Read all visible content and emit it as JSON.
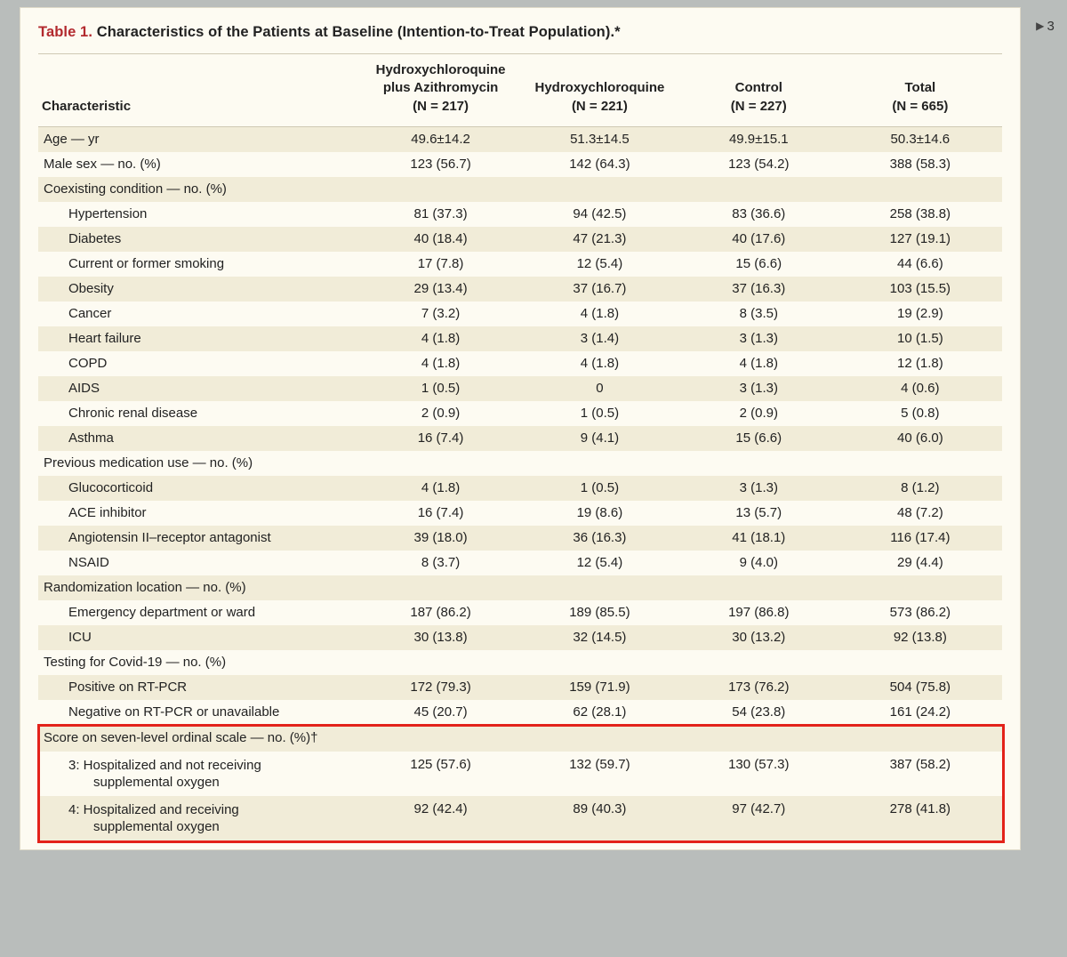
{
  "sideMarker": "3",
  "title": {
    "number": "Table 1.",
    "text": "Characteristics of the Patients at Baseline (Intention-to-Treat Population).*"
  },
  "columns": {
    "c0": "Characteristic",
    "c1a": "Hydroxychloroquine",
    "c1b": "plus Azithromycin",
    "c1c": "(N = 217)",
    "c2a": "Hydroxychloroquine",
    "c2b": "(N = 221)",
    "c3a": "Control",
    "c3b": "(N = 227)",
    "c4a": "Total",
    "c4b": "(N = 665)"
  },
  "rows": [
    {
      "shade": true,
      "indent": 0,
      "lbl": "Age — yr",
      "v": [
        "49.6±14.2",
        "51.3±14.5",
        "49.9±15.1",
        "50.3±14.6"
      ]
    },
    {
      "shade": false,
      "indent": 0,
      "lbl": "Male sex — no. (%)",
      "v": [
        "123 (56.7)",
        "142 (64.3)",
        "123 (54.2)",
        "388 (58.3)"
      ]
    },
    {
      "shade": true,
      "indent": 0,
      "lbl": "Coexisting condition — no. (%)",
      "v": [
        "",
        "",
        "",
        ""
      ]
    },
    {
      "shade": false,
      "indent": 1,
      "lbl": "Hypertension",
      "v": [
        "81 (37.3)",
        "94 (42.5)",
        "83 (36.6)",
        "258 (38.8)"
      ]
    },
    {
      "shade": true,
      "indent": 1,
      "lbl": "Diabetes",
      "v": [
        "40 (18.4)",
        "47 (21.3)",
        "40 (17.6)",
        "127 (19.1)"
      ]
    },
    {
      "shade": false,
      "indent": 1,
      "lbl": "Current or former smoking",
      "v": [
        "17 (7.8)",
        "12 (5.4)",
        "15 (6.6)",
        "44 (6.6)"
      ]
    },
    {
      "shade": true,
      "indent": 1,
      "lbl": "Obesity",
      "v": [
        "29 (13.4)",
        "37 (16.7)",
        "37 (16.3)",
        "103 (15.5)"
      ]
    },
    {
      "shade": false,
      "indent": 1,
      "lbl": "Cancer",
      "v": [
        "7 (3.2)",
        "4 (1.8)",
        "8 (3.5)",
        "19 (2.9)"
      ]
    },
    {
      "shade": true,
      "indent": 1,
      "lbl": "Heart failure",
      "v": [
        "4 (1.8)",
        "3 (1.4)",
        "3 (1.3)",
        "10 (1.5)"
      ]
    },
    {
      "shade": false,
      "indent": 1,
      "lbl": "COPD",
      "v": [
        "4 (1.8)",
        "4 (1.8)",
        "4 (1.8)",
        "12 (1.8)"
      ]
    },
    {
      "shade": true,
      "indent": 1,
      "lbl": "AIDS",
      "v": [
        "1 (0.5)",
        "0",
        "3 (1.3)",
        "4 (0.6)"
      ]
    },
    {
      "shade": false,
      "indent": 1,
      "lbl": "Chronic renal disease",
      "v": [
        "2 (0.9)",
        "1 (0.5)",
        "2 (0.9)",
        "5 (0.8)"
      ]
    },
    {
      "shade": true,
      "indent": 1,
      "lbl": "Asthma",
      "v": [
        "16 (7.4)",
        "9 (4.1)",
        "15 (6.6)",
        "40 (6.0)"
      ]
    },
    {
      "shade": false,
      "indent": 0,
      "lbl": "Previous medication use — no. (%)",
      "v": [
        "",
        "",
        "",
        ""
      ]
    },
    {
      "shade": true,
      "indent": 1,
      "lbl": "Glucocorticoid",
      "v": [
        "4 (1.8)",
        "1 (0.5)",
        "3 (1.3)",
        "8 (1.2)"
      ]
    },
    {
      "shade": false,
      "indent": 1,
      "lbl": "ACE inhibitor",
      "v": [
        "16 (7.4)",
        "19 (8.6)",
        "13 (5.7)",
        "48 (7.2)"
      ]
    },
    {
      "shade": true,
      "indent": 1,
      "lbl": "Angiotensin II–receptor antagonist",
      "v": [
        "39 (18.0)",
        "36 (16.3)",
        "41 (18.1)",
        "116 (17.4)"
      ]
    },
    {
      "shade": false,
      "indent": 1,
      "lbl": "NSAID",
      "v": [
        "8 (3.7)",
        "12 (5.4)",
        "9 (4.0)",
        "29 (4.4)"
      ]
    },
    {
      "shade": true,
      "indent": 0,
      "lbl": "Randomization location — no. (%)",
      "v": [
        "",
        "",
        "",
        ""
      ]
    },
    {
      "shade": false,
      "indent": 1,
      "lbl": "Emergency department or ward",
      "v": [
        "187 (86.2)",
        "189 (85.5)",
        "197 (86.8)",
        "573 (86.2)"
      ]
    },
    {
      "shade": true,
      "indent": 1,
      "lbl": "ICU",
      "v": [
        "30 (13.8)",
        "32 (14.5)",
        "30 (13.2)",
        "92 (13.8)"
      ]
    },
    {
      "shade": false,
      "indent": 0,
      "lbl": "Testing for Covid-19 — no. (%)",
      "v": [
        "",
        "",
        "",
        ""
      ]
    },
    {
      "shade": true,
      "indent": 1,
      "lbl": "Positive on RT-PCR",
      "v": [
        "172 (79.3)",
        "159 (71.9)",
        "173 (76.2)",
        "504 (75.8)"
      ]
    },
    {
      "shade": false,
      "indent": 1,
      "lbl": "Negative on RT-PCR or unavailable",
      "v": [
        "45 (20.7)",
        "62 (28.1)",
        "54 (23.8)",
        "161 (24.2)"
      ]
    },
    {
      "shade": true,
      "indent": 0,
      "wrap": true,
      "lbl": "Score on seven-level ordinal scale — no. (%)†",
      "v": [
        "",
        "",
        "",
        ""
      ]
    },
    {
      "shade": false,
      "indent": 1,
      "wrap": true,
      "lbl": "3: Hospitalized and not receiving supplemental oxygen",
      "v": [
        "125 (57.6)",
        "132 (59.7)",
        "130 (57.3)",
        "387 (58.2)"
      ]
    },
    {
      "shade": true,
      "indent": 1,
      "wrap": true,
      "lbl": "4: Hospitalized and receiving supplemental oxygen",
      "v": [
        "92 (42.4)",
        "89 (40.3)",
        "97 (42.7)",
        "278 (41.8)"
      ]
    }
  ],
  "highlight": {
    "fromRow": 24,
    "toRow": 26
  },
  "style": {
    "pageBg": "#fdfbf2",
    "outerBg": "#b9bdbb",
    "shadeBg": "#f1ecd8",
    "titleColor": "#b2292e",
    "highlightColor": "#e3221a",
    "fontSize": 15
  }
}
